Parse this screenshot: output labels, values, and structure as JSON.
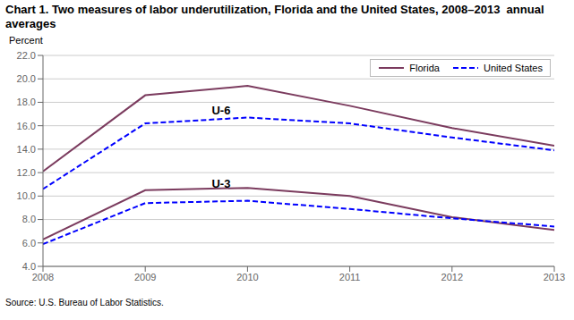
{
  "chart_data": {
    "type": "line",
    "title": "Chart 1. Two measures of labor underutilization, Florida and the United States, 2008–2013  annual averages",
    "ylabel": "Percent",
    "source": "Source: U.S. Bureau of Labor Statistics.",
    "x": [
      2008,
      2009,
      2010,
      2011,
      2012,
      2013
    ],
    "xlim": [
      2008,
      2013
    ],
    "xticks": [
      2008,
      2009,
      2010,
      2011,
      2012,
      2013
    ],
    "ylim": [
      4.0,
      22.0
    ],
    "yticks": [
      {
        "value": 4.0,
        "label": "4.0"
      },
      {
        "value": 6.0,
        "label": "6.0"
      },
      {
        "value": 8.0,
        "label": "8.0"
      },
      {
        "value": 10.0,
        "label": "10.0"
      },
      {
        "value": 12.0,
        "label": "12.0"
      },
      {
        "value": 14.0,
        "label": "14.0"
      },
      {
        "value": 16.0,
        "label": "16.0"
      },
      {
        "value": 18.0,
        "label": "18.0"
      },
      {
        "value": 20.0,
        "label": "20.0"
      },
      {
        "value": 22.0,
        "label": "22.0"
      }
    ],
    "grid": true,
    "legend": "upper right",
    "series": [
      {
        "name": "Florida",
        "color": "#7B3B5E",
        "line_style": "solid",
        "values": [
          12.1,
          18.6,
          19.4,
          17.7,
          15.8,
          14.3
        ]
      },
      {
        "name": "United States",
        "color": "#0000FF",
        "line_style": "dashed",
        "values": [
          10.6,
          16.2,
          16.7,
          16.2,
          15.0,
          13.9
        ]
      },
      {
        "name": "Florida",
        "color": "#7B3B5E",
        "line_style": "solid",
        "values": [
          6.3,
          10.5,
          10.7,
          10.0,
          8.2,
          7.1
        ]
      },
      {
        "name": "United States",
        "color": "#0000FF",
        "line_style": "dashed",
        "values": [
          5.9,
          9.4,
          9.6,
          8.9,
          8.1,
          7.4
        ]
      }
    ],
    "annotations": [
      {
        "text": "U-6",
        "x": 2009.65,
        "y": 17.0
      },
      {
        "text": "U-3",
        "x": 2009.65,
        "y": 10.75
      }
    ]
  }
}
